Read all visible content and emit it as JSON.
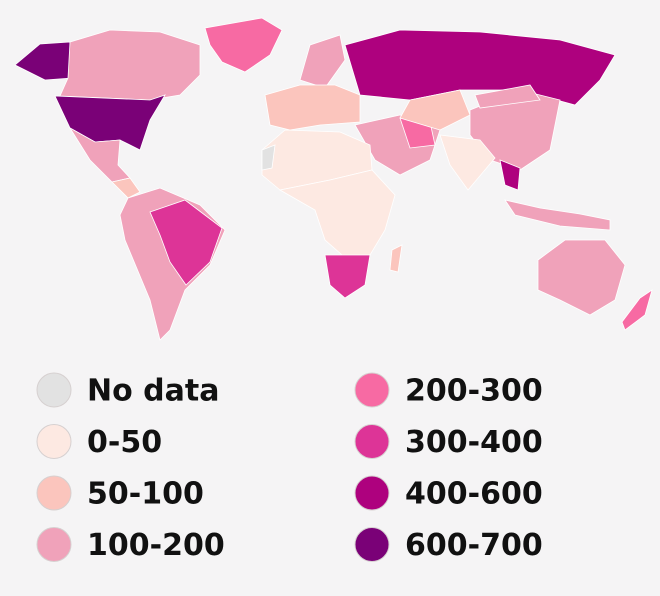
{
  "legend": [
    {
      "label": "No data",
      "color": "#e2e2e2"
    },
    {
      "label": "0-50",
      "color": "#fde9e2"
    },
    {
      "label": "50-100",
      "color": "#fbc5bd"
    },
    {
      "label": "100-200",
      "color": "#f0a2ba"
    },
    {
      "label": "200-300",
      "color": "#f76aa3"
    },
    {
      "label": "300-400",
      "color": "#dd3497"
    },
    {
      "label": "400-600",
      "color": "#ae017e"
    },
    {
      "label": "600-700",
      "color": "#7a0177"
    }
  ]
}
